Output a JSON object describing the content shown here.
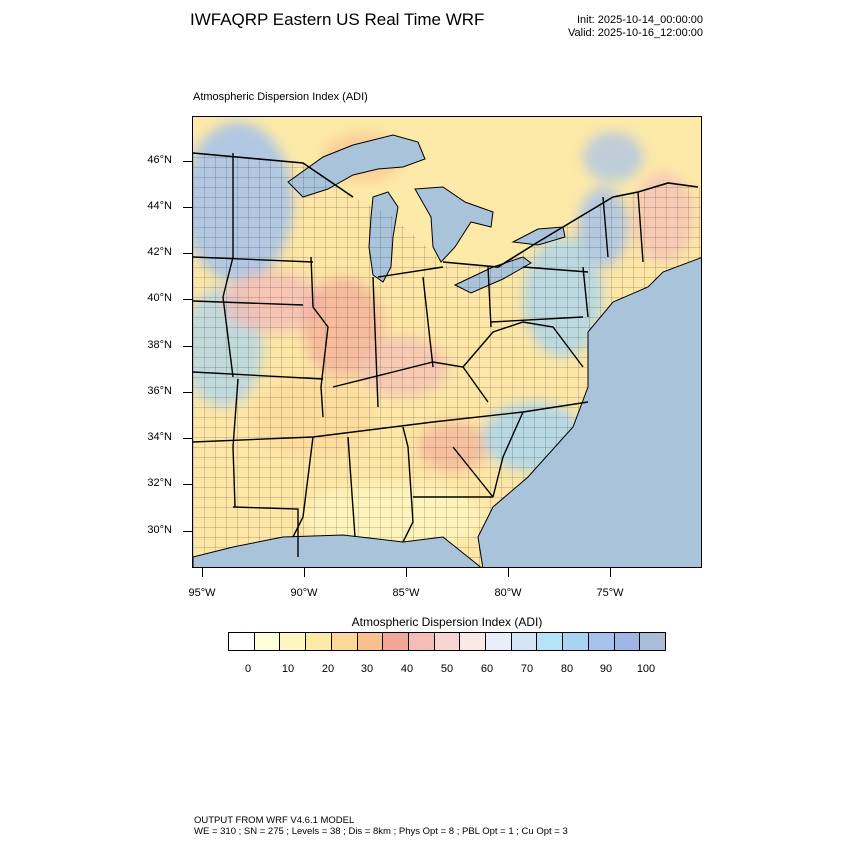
{
  "header": {
    "title": "IWFAQRP Eastern US Real Time WRF",
    "init": "Init: 2025-10-14_00:00:00",
    "valid": "Valid: 2025-10-16_12:00:00"
  },
  "panel_title": "Atmospheric Dispersion Index   (ADI)",
  "map": {
    "latitude_labels": [
      "46°N",
      "44°N",
      "42°N",
      "40°N",
      "38°N",
      "36°N",
      "34°N",
      "32°N",
      "30°N"
    ],
    "longitude_labels": [
      "95°W",
      "90°W",
      "85°W",
      "80°W",
      "75°W"
    ],
    "colors": {
      "ocean": "#a9c3db",
      "canada": "#fde9a8",
      "lakes": "#a9c3db"
    }
  },
  "legend": {
    "title": "Atmospheric Dispersion Index  (ADI)",
    "tick_labels": [
      "0",
      "10",
      "20",
      "30",
      "40",
      "50",
      "60",
      "70",
      "80",
      "90",
      "100"
    ],
    "colors": [
      "#ffffff",
      "#fefed8",
      "#fef6c0",
      "#fdeaa8",
      "#fbd79a",
      "#f7c08c",
      "#f2a698",
      "#f4bdb8",
      "#f8d4d2",
      "#fbe8e8",
      "#ebedf8",
      "#d2e6f6",
      "#b3e3f7",
      "#a6d4f2",
      "#a4c2ec",
      "#a0b6e4",
      "#a8bcd8"
    ]
  },
  "footer": {
    "line1": "OUTPUT FROM WRF V4.6.1 MODEL",
    "line2": "WE = 310 ; SN = 275 ; Levels = 38 ; Dis = 8km ; Phys Opt = 8 ; PBL Opt = 1 ; Cu Opt = 3"
  }
}
